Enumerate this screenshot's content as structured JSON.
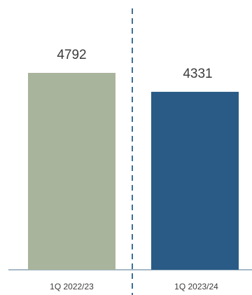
{
  "chart_data": {
    "type": "bar",
    "categories": [
      "1Q 2022/23",
      "1Q 2023/24"
    ],
    "values": [
      4792,
      4331
    ],
    "ylim": [
      0,
      4792
    ],
    "grid": false,
    "colors": {
      "bar_1": "#a9b49c",
      "bar_2": "#2a5b86",
      "baseline": "#8aa1b5",
      "divider": "#3d6e97",
      "text": "#3b3b3b"
    }
  }
}
